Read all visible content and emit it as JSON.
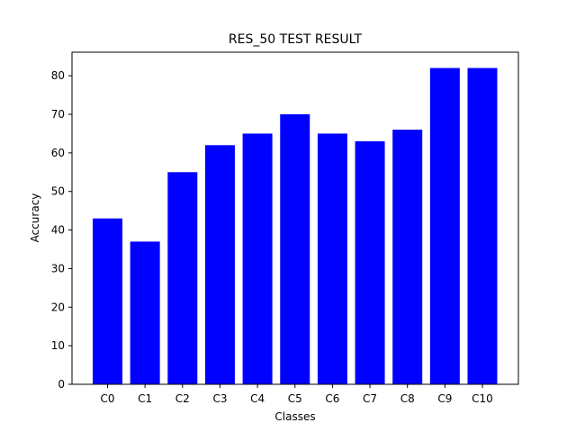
{
  "chart_data": {
    "type": "bar",
    "title": "RES_50 TEST RESULT",
    "xlabel": "Classes",
    "ylabel": "Accuracy",
    "categories": [
      "C0",
      "C1",
      "C2",
      "C3",
      "C4",
      "C5",
      "C6",
      "C7",
      "C8",
      "C9",
      "C10"
    ],
    "values": [
      43,
      37,
      55,
      62,
      65,
      70,
      65,
      63,
      66,
      82,
      82
    ],
    "ylim": [
      0,
      86.1
    ],
    "yticks": [
      0,
      10,
      20,
      30,
      40,
      50,
      60,
      70,
      80
    ],
    "bar_color": "#0000ff",
    "grid": false,
    "legend": false
  }
}
